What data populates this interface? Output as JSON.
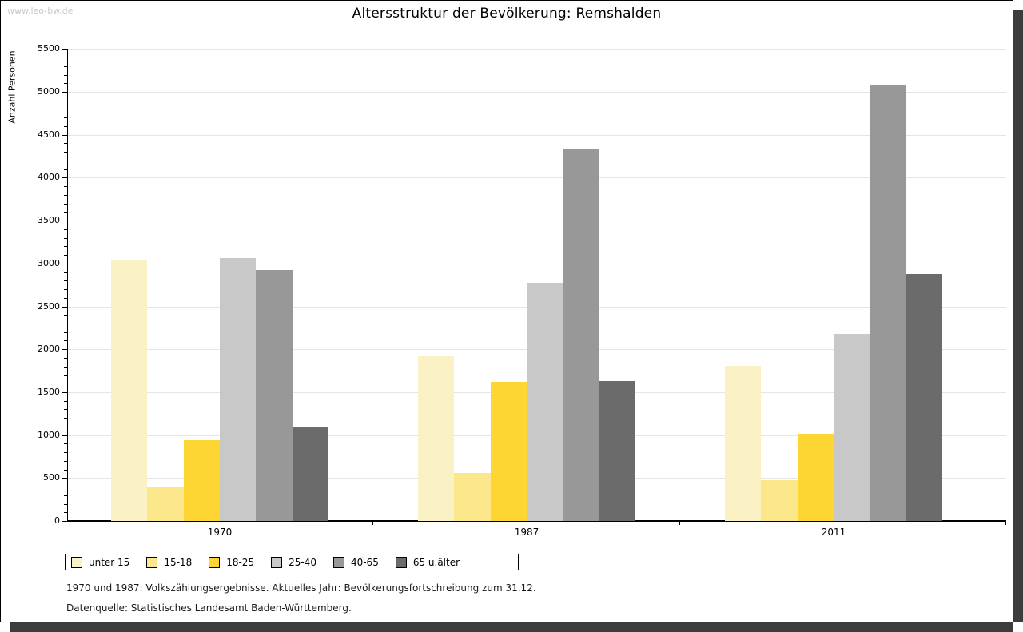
{
  "page": {
    "watermark": "www.leo-bw.de"
  },
  "footer": {
    "line1": "1970 und 1987: Volkszählungsergebnisse. Aktuelles Jahr: Bevölkerungsfortschreibung zum 31.12.",
    "line2": "Datenquelle: Statistisches Landesamt Baden-Württemberg."
  },
  "chart_data": {
    "type": "bar",
    "title": "Altersstruktur der Bevölkerung: Remshalden",
    "ylabel": "Anzahl Personen",
    "xlabel": "",
    "categories": [
      "1970",
      "1987",
      "2011"
    ],
    "series": [
      {
        "name": "unter 15",
        "color": "#FAF2C4",
        "values": [
          3040,
          1920,
          1810
        ]
      },
      {
        "name": "15-18",
        "color": "#FCE78B",
        "values": [
          400,
          555,
          475
        ]
      },
      {
        "name": "18-25",
        "color": "#FDD633",
        "values": [
          940,
          1620,
          1015
        ]
      },
      {
        "name": "25-40",
        "color": "#C8C8C8",
        "values": [
          3065,
          2775,
          2180
        ]
      },
      {
        "name": "40-65",
        "color": "#989898",
        "values": [
          2925,
          4330,
          5080
        ]
      },
      {
        "name": "65 u.älter",
        "color": "#6B6B6B",
        "values": [
          1085,
          1630,
          2880
        ]
      }
    ],
    "ylim": [
      0,
      5500
    ],
    "ytick_step": 500,
    "ytick_minor_step": 100,
    "grid": true,
    "legend_position": "bottom"
  }
}
